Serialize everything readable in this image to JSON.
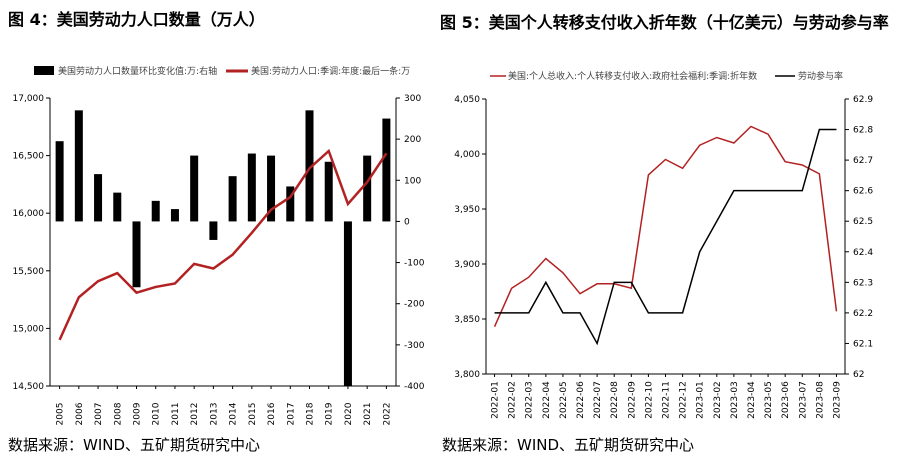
{
  "left": {
    "title": "图 4：美国劳动力人口数量（万人）",
    "source": "数据来源：WIND、五矿期货研究中心",
    "chart_data": {
      "type": "bar+line",
      "categories": [
        "2005",
        "2006",
        "2007",
        "2008",
        "2009",
        "2010",
        "2011",
        "2012",
        "2013",
        "2014",
        "2015",
        "2016",
        "2017",
        "2018",
        "2019",
        "2020",
        "2021",
        "2022"
      ],
      "series": [
        {
          "name": "美国劳动力人口数量环比变化值:万:右轴",
          "type": "bar",
          "axis": "right",
          "color": "#000000",
          "values": [
            195,
            270,
            115,
            70,
            -160,
            50,
            30,
            160,
            -45,
            110,
            165,
            160,
            85,
            270,
            145,
            -400,
            160,
            250
          ]
        },
        {
          "name": "美国:劳动力人口:季调:年度:最后一条:万",
          "type": "line",
          "axis": "left",
          "color": "#b22222",
          "values": [
            14900,
            15270,
            15410,
            15480,
            15310,
            15360,
            15390,
            15560,
            15520,
            15640,
            15830,
            16030,
            16140,
            16390,
            16540,
            16080,
            16270,
            16520
          ]
        }
      ],
      "ylim_left": [
        14500,
        17000
      ],
      "yticks_left": [
        "17,000",
        "16,500",
        "16,000",
        "15,500",
        "15,000",
        "14,500"
      ],
      "ylim_right": [
        -400,
        300
      ],
      "yticks_right": [
        "300",
        "200",
        "100",
        "0",
        "-100",
        "-200",
        "-300",
        "-400"
      ]
    }
  },
  "right": {
    "title": "图 5：美国个人转移支付收入折年数（十亿美元）与劳动参与率",
    "source": "数据来源：WIND、五矿期货研究中心",
    "chart_data": {
      "type": "line",
      "categories": [
        "2022-01",
        "2022-02",
        "2022-03",
        "2022-04",
        "2022-05",
        "2022-06",
        "2022-07",
        "2022-08",
        "2022-09",
        "2022-10",
        "2022-11",
        "2022-12",
        "2023-01",
        "2023-02",
        "2023-03",
        "2023-04",
        "2023-05",
        "2023-06",
        "2023-07",
        "2023-08",
        "2023-09"
      ],
      "series": [
        {
          "name": "美国:个人总收入:个人转移支付收入:政府社会福利:季调:折年数",
          "axis": "left",
          "color": "#b22222",
          "values": [
            3843,
            3878,
            3888,
            3905,
            3892,
            3873,
            3882,
            3882,
            3878,
            3981,
            3995,
            3987,
            4008,
            4015,
            4010,
            4025,
            4018,
            3993,
            3990,
            3982,
            3857
          ]
        },
        {
          "name": "劳动参与率",
          "axis": "right",
          "color": "#000000",
          "values": [
            62.2,
            62.2,
            62.2,
            62.3,
            62.2,
            62.2,
            62.1,
            62.3,
            62.3,
            62.2,
            62.2,
            62.2,
            62.4,
            62.5,
            62.6,
            62.6,
            62.6,
            62.6,
            62.6,
            62.8,
            62.8
          ]
        }
      ],
      "ylim_left": [
        3800,
        4050
      ],
      "yticks_left": [
        "4,050",
        "4,000",
        "3,950",
        "3,900",
        "3,850",
        "3,800"
      ],
      "ylim_right": [
        62.0,
        62.9
      ],
      "yticks_right": [
        "62.9",
        "62.8",
        "62.7",
        "62.6",
        "62.5",
        "62.4",
        "62.3",
        "62.2",
        "62.1",
        "62"
      ]
    }
  }
}
